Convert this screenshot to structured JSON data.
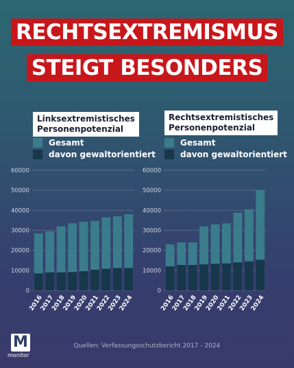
{
  "headline": {
    "line1": "RECHTSEXTREMISMUS",
    "line2": "STEIGT BESONDERS"
  },
  "colors": {
    "total": "#3a7c8c",
    "violent": "#17374a",
    "headline_bg": "#c8171b"
  },
  "legend": {
    "total": "Gesamt",
    "violent": "davon gewaltorientiert"
  },
  "source": "Quellen: Verfassungsschutzbericht 2017 - 2024",
  "logo": {
    "label": "monitor",
    "mark": "M"
  },
  "chart_data": [
    {
      "type": "bar",
      "title": "Linksextremistisches Personenpotenzial",
      "title_lines": [
        "Linksextremistisches",
        "Personenpotenzial"
      ],
      "categories": [
        "2016",
        "2017",
        "2018",
        "2019",
        "2020",
        "2021",
        "2022",
        "2023",
        "2024"
      ],
      "series": [
        {
          "name": "Gesamt",
          "values": [
            28500,
            29500,
            32000,
            33500,
            34300,
            34700,
            36500,
            37000,
            38000
          ]
        },
        {
          "name": "davon gewaltorientiert",
          "values": [
            8500,
            9000,
            9000,
            9200,
            9600,
            10300,
            10800,
            11200,
            11200
          ]
        }
      ],
      "ylim": [
        0,
        60000
      ],
      "yticks": [
        "0",
        "10000",
        "20000",
        "30000",
        "40000",
        "50000",
        "60000"
      ],
      "legend_position": "top-left",
      "stacking": "overlay"
    },
    {
      "type": "bar",
      "title": "Rechtsextremistisches Personenpotenzial",
      "title_lines": [
        "Rechtsextremistisches",
        "Personenpotenzial"
      ],
      "categories": [
        "2016",
        "2017",
        "2018",
        "2019",
        "2020",
        "2021",
        "2022",
        "2023",
        "2024"
      ],
      "series": [
        {
          "name": "Gesamt",
          "values": [
            23000,
            24000,
            24000,
            32000,
            33000,
            33500,
            38800,
            40500,
            50000
          ]
        },
        {
          "name": "davon gewaltorientiert",
          "values": [
            12000,
            12700,
            12700,
            13000,
            13300,
            13500,
            14000,
            14500,
            15300
          ]
        }
      ],
      "ylim": [
        0,
        60000
      ],
      "yticks": [
        "0",
        "10000",
        "20000",
        "30000",
        "40000",
        "50000",
        "60000"
      ],
      "legend_position": "top-left",
      "stacking": "overlay"
    }
  ]
}
